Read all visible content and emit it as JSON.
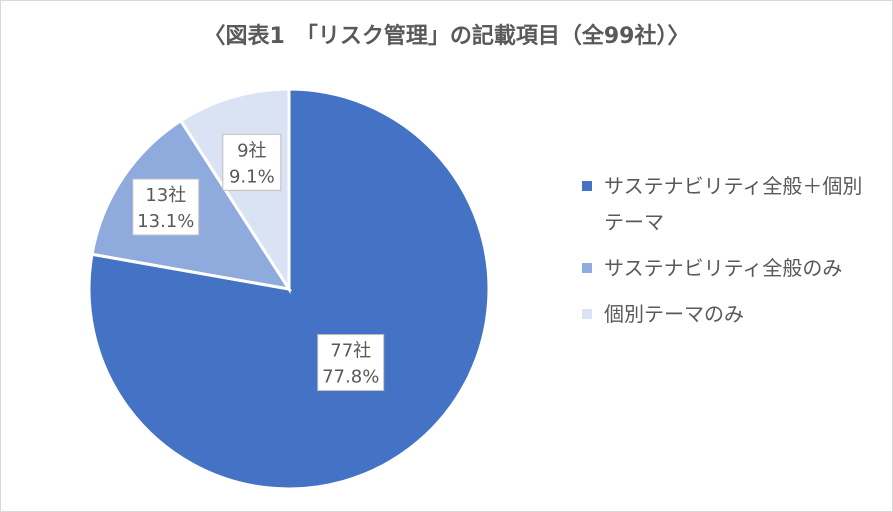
{
  "chart_data": {
    "type": "pie",
    "title": "〈図表1　「リスク管理」の記載項目（全99社）〉",
    "start_angle_deg": 0,
    "direction": "clockwise",
    "slices": [
      {
        "label": "サステナビリティ全般＋個別テーマ",
        "value": 77,
        "count_label": "77社",
        "percent_label": "77.8%",
        "color": "#4472c4"
      },
      {
        "label": "サステナビリティ全般のみ",
        "value": 13,
        "count_label": "13社",
        "percent_label": "13.1%",
        "color": "#8faadc"
      },
      {
        "label": "個別テーマのみ",
        "value": 9,
        "count_label": "9社",
        "percent_label": "9.1%",
        "color": "#dae3f3"
      }
    ],
    "legend_position": "right"
  }
}
